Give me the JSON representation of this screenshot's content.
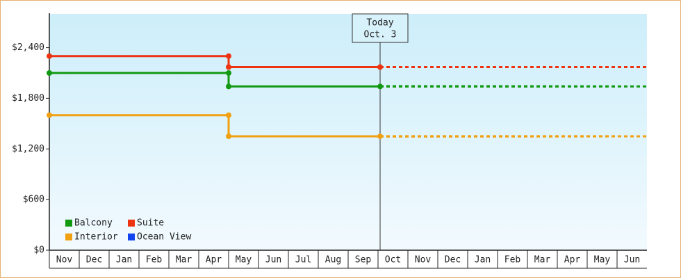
{
  "chart_data": {
    "type": "step-line",
    "categories": [
      "Nov",
      "Dec",
      "Jan",
      "Feb",
      "Mar",
      "Apr",
      "May",
      "Jun",
      "Jul",
      "Aug",
      "Sep",
      "Oct",
      "Nov",
      "Dec",
      "Jan",
      "Feb",
      "Mar",
      "Apr",
      "May",
      "Jun"
    ],
    "series": [
      {
        "name": "Balcony",
        "color": "#119911",
        "values": [
          2100,
          2100,
          2100,
          2100,
          2100,
          2100,
          1940,
          1940,
          1940,
          1940,
          1940,
          1940,
          1940,
          1940,
          1940,
          1940,
          1940,
          1940,
          1940,
          1940
        ]
      },
      {
        "name": "Suite",
        "color": "#ee3311",
        "values": [
          2300,
          2300,
          2300,
          2300,
          2300,
          2300,
          2170,
          2170,
          2170,
          2170,
          2170,
          2170,
          2170,
          2170,
          2170,
          2170,
          2170,
          2170,
          2170,
          2170
        ]
      },
      {
        "name": "Interior",
        "color": "#f0a010",
        "values": [
          1600,
          1600,
          1600,
          1600,
          1600,
          1600,
          1350,
          1350,
          1350,
          1350,
          1350,
          1350,
          1350,
          1350,
          1350,
          1350,
          1350,
          1350,
          1350,
          1350
        ]
      },
      {
        "name": "Ocean View",
        "color": "#1144ee",
        "values": [
          null,
          null,
          null,
          null,
          null,
          null,
          null,
          null,
          null,
          null,
          null,
          null,
          null,
          null,
          null,
          null,
          null,
          null,
          null,
          null
        ]
      }
    ],
    "today": {
      "label": "Today",
      "date": "Oct. 3",
      "category": "Oct"
    },
    "ylim": [
      0,
      2800
    ],
    "yticks": [
      {
        "value": 0,
        "label": "$0"
      },
      {
        "value": 600,
        "label": "$600"
      },
      {
        "value": 1200,
        "label": "$1,200"
      },
      {
        "value": 1800,
        "label": "$1,800"
      },
      {
        "value": 2400,
        "label": "$2,400"
      }
    ],
    "grid": false
  }
}
